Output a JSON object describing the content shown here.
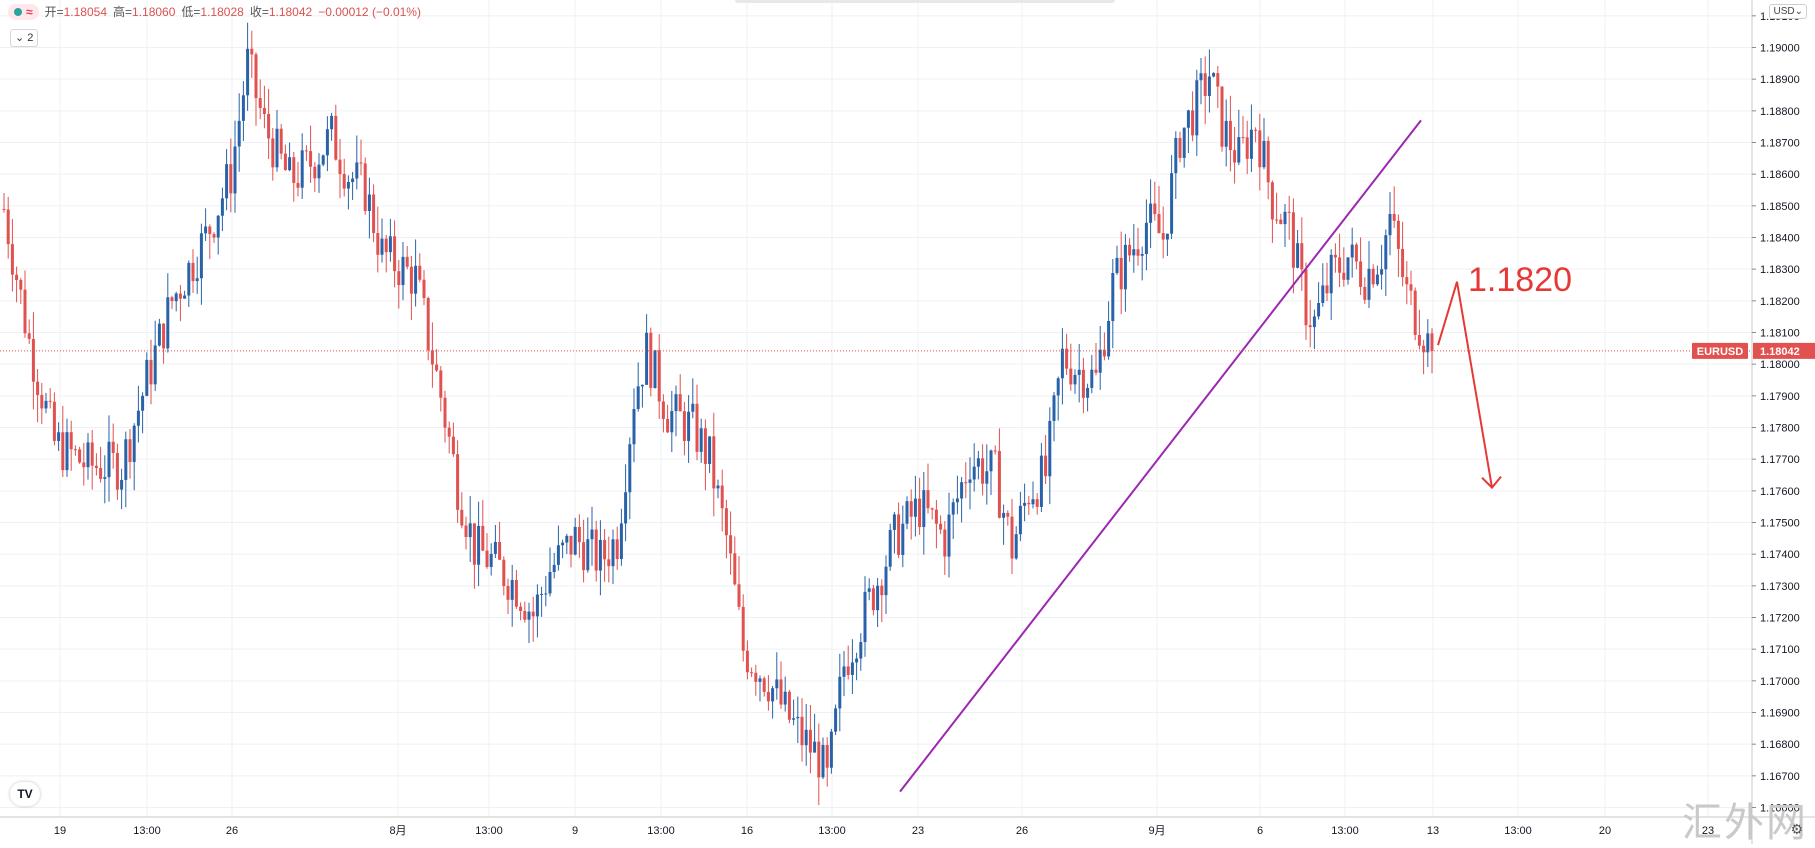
{
  "legend": {
    "badge_icon": "wave-icon",
    "open_label": "开=",
    "open": "1.18054",
    "high_label": "高=",
    "high": "1.18060",
    "low_label": "低=",
    "low": "1.18028",
    "close_label": "收=",
    "close": "1.18042",
    "change": "−0.00012 (−0.01%)",
    "collapse_label": "2"
  },
  "currency_button": "USD",
  "symbol_tag": "EURUSD",
  "price_tag": "1.18042",
  "annotation_label": "1.1820",
  "watermark": "汇外网",
  "logo_text": "TV",
  "colors": {
    "up": "#2962a8",
    "down": "#e0514f",
    "trendline": "#9c27b0",
    "annotation": "#e53935"
  },
  "chart_data": {
    "type": "candlestick",
    "symbol": "EURUSD",
    "last_price": 1.18042,
    "ylim": [
      1.1657,
      1.1915
    ],
    "y_ticks": [
      1.166,
      1.167,
      1.168,
      1.169,
      1.17,
      1.171,
      1.172,
      1.173,
      1.174,
      1.175,
      1.176,
      1.177,
      1.178,
      1.179,
      1.18,
      1.181,
      1.182,
      1.183,
      1.184,
      1.185,
      1.186,
      1.187,
      1.188,
      1.189,
      1.19,
      1.191
    ],
    "x_ticks": [
      "19",
      "13:00",
      "26",
      "8月",
      "13:00",
      "9",
      "13:00",
      "16",
      "13:00",
      "23",
      "26",
      "9月",
      "6",
      "13:00",
      "13",
      "13:00",
      "20",
      "23"
    ],
    "anchors": [
      [
        0,
        1.1849
      ],
      [
        6,
        1.1807
      ],
      [
        12,
        1.1775
      ],
      [
        20,
        1.1768
      ],
      [
        28,
        1.1768
      ],
      [
        34,
        1.1795
      ],
      [
        40,
        1.182
      ],
      [
        48,
        1.184
      ],
      [
        54,
        1.186
      ],
      [
        58,
        1.1895
      ],
      [
        62,
        1.1875
      ],
      [
        68,
        1.1858
      ],
      [
        72,
        1.1862
      ],
      [
        78,
        1.1872
      ],
      [
        82,
        1.186
      ],
      [
        86,
        1.1855
      ],
      [
        90,
        1.1835
      ],
      [
        98,
        1.1827
      ],
      [
        104,
        1.179
      ],
      [
        108,
        1.1762
      ],
      [
        112,
        1.1742
      ],
      [
        116,
        1.1738
      ],
      [
        122,
        1.173
      ],
      [
        126,
        1.1721
      ],
      [
        130,
        1.1735
      ],
      [
        136,
        1.1745
      ],
      [
        142,
        1.1738
      ],
      [
        146,
        1.1745
      ],
      [
        150,
        1.179
      ],
      [
        153,
        1.1804
      ],
      [
        158,
        1.1785
      ],
      [
        164,
        1.178
      ],
      [
        168,
        1.177
      ],
      [
        172,
        1.1745
      ],
      [
        176,
        1.171
      ],
      [
        182,
        1.17
      ],
      [
        186,
        1.169
      ],
      [
        190,
        1.1682
      ],
      [
        194,
        1.1676
      ],
      [
        196,
        1.1668
      ],
      [
        200,
        1.1705
      ],
      [
        206,
        1.1725
      ],
      [
        212,
        1.1745
      ],
      [
        218,
        1.1755
      ],
      [
        224,
        1.1745
      ],
      [
        230,
        1.177
      ],
      [
        236,
        1.1765
      ],
      [
        240,
        1.1742
      ],
      [
        244,
        1.176
      ],
      [
        248,
        1.1765
      ],
      [
        252,
        1.1802
      ],
      [
        256,
        1.1798
      ],
      [
        260,
        1.1795
      ],
      [
        264,
        1.1825
      ],
      [
        268,
        1.1835
      ],
      [
        272,
        1.1845
      ],
      [
        276,
        1.184
      ],
      [
        280,
        1.1872
      ],
      [
        284,
        1.1882
      ],
      [
        287,
        1.1892
      ],
      [
        290,
        1.1875
      ],
      [
        294,
        1.1865
      ],
      [
        298,
        1.1876
      ],
      [
        302,
        1.1852
      ],
      [
        306,
        1.1843
      ],
      [
        310,
        1.1818
      ],
      [
        312,
        1.1813
      ],
      [
        316,
        1.1828
      ],
      [
        320,
        1.1834
      ],
      [
        324,
        1.1828
      ],
      [
        328,
        1.1835
      ],
      [
        330,
        1.1846
      ],
      [
        334,
        1.1822
      ],
      [
        338,
        1.181
      ],
      [
        340,
        1.18042
      ]
    ],
    "trendline": {
      "from": [
        "22",
        1.1665
      ],
      "to": [
        "13",
        1.1877
      ]
    },
    "annotation": {
      "text": "1.1820",
      "path": [
        [
          "13",
          1.1806
        ],
        [
          "13",
          1.1826
        ],
        [
          "13:00",
          1.1761
        ]
      ]
    }
  }
}
